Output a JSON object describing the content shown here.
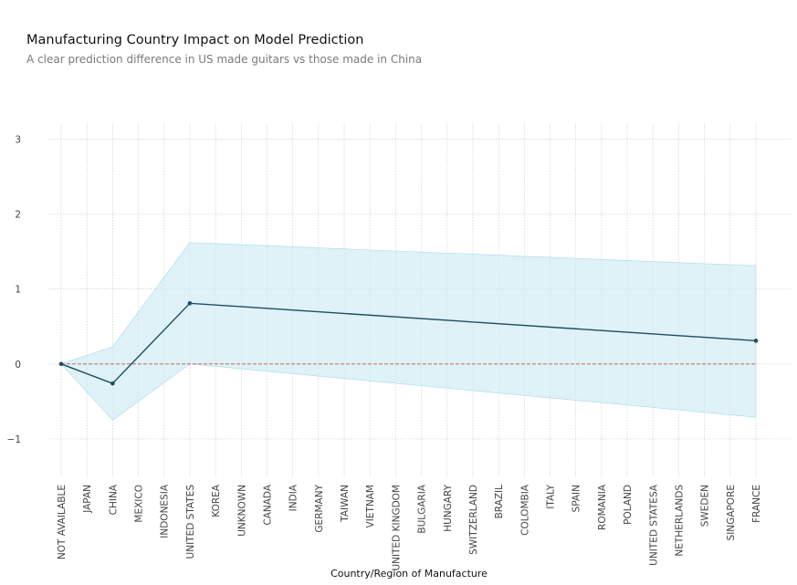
{
  "chart_data": {
    "type": "line",
    "title": "Manufacturing Country Impact on Model Prediction",
    "subtitle": "A clear prediction difference in US made guitars vs those made in China",
    "xlabel": "Country/Region of Manufacture",
    "ylabel": "",
    "categories": [
      "NOT AVAILABLE",
      "JAPAN",
      "CHINA",
      "MEXICO",
      "INDONESIA",
      "UNITED STATES",
      "KOREA",
      "UNKNOWN",
      "CANADA",
      "INDIA",
      "GERMANY",
      "TAIWAN",
      "VIETNAM",
      "UNITED KINGDOM",
      "BULGARIA",
      "HUNGARY",
      "SWITZERLAND",
      "BRAZIL",
      "COLOMBIA",
      "ITALY",
      "SPAIN",
      "ROMANIA",
      "POLAND",
      "UNITED STATESA",
      "NETHERLANDS",
      "SWEDEN",
      "SINGAPORE",
      "FRANCE"
    ],
    "points": [
      {
        "category": "NOT AVAILABLE",
        "value": 0.0,
        "lower": 0.0,
        "upper": 0.0
      },
      {
        "category": "CHINA",
        "value": -0.26,
        "lower": -0.75,
        "upper": 0.23
      },
      {
        "category": "UNITED STATES",
        "value": 0.81,
        "lower": 0.0,
        "upper": 1.62
      },
      {
        "category": "FRANCE",
        "value": 0.31,
        "lower": -0.71,
        "upper": 1.31
      }
    ],
    "reference_line": 0,
    "ylim": [
      -1.5,
      3.2
    ],
    "yticks": [
      -1,
      0,
      1,
      2,
      3
    ],
    "grid": true,
    "colors": {
      "line": "#1f4e5f",
      "band": "#cdebf5",
      "reference": "#c0583a",
      "grid": "#c9c9c9"
    }
  }
}
